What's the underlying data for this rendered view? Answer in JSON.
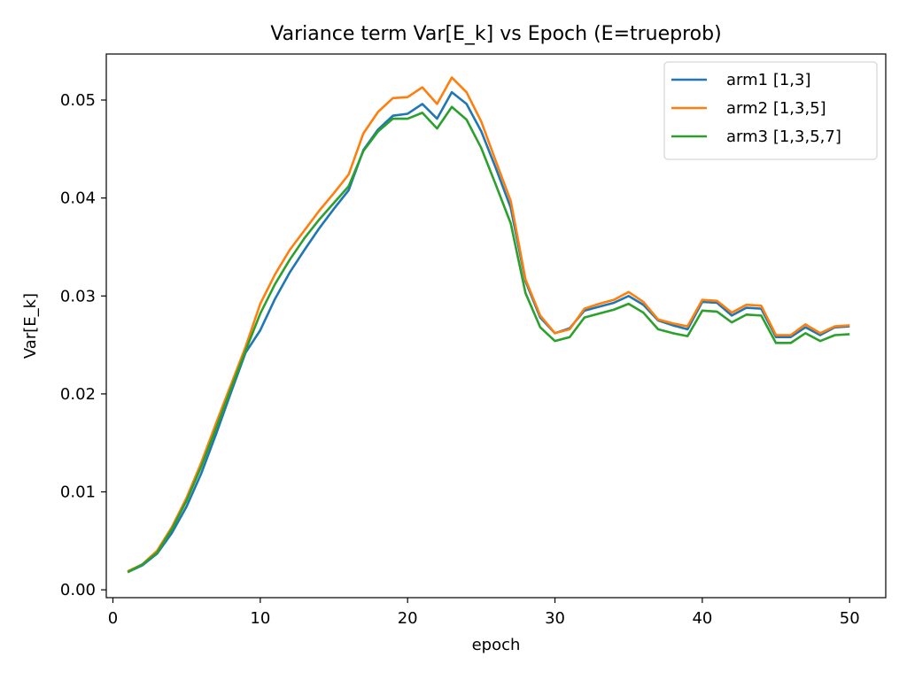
{
  "chart_data": {
    "type": "line",
    "title": "Variance term Var[E_k] vs Epoch  (E=trueprob)",
    "xlabel": "epoch",
    "ylabel": "Var[E_k]",
    "xlim": [
      -0.45,
      52.45
    ],
    "ylim": [
      -0.0008,
      0.0547
    ],
    "xticks": [
      "0",
      "10",
      "20",
      "30",
      "40",
      "50"
    ],
    "yticks": [
      "0.00",
      "0.01",
      "0.02",
      "0.03",
      "0.04",
      "0.05"
    ],
    "grid": false,
    "legend_position": "top-right",
    "x": [
      1,
      2,
      3,
      4,
      5,
      6,
      7,
      8,
      9,
      10,
      11,
      12,
      13,
      14,
      15,
      16,
      17,
      18,
      19,
      20,
      21,
      22,
      23,
      24,
      25,
      26,
      27,
      28,
      29,
      30,
      31,
      32,
      33,
      34,
      35,
      36,
      37,
      38,
      39,
      40,
      41,
      42,
      43,
      44,
      45,
      46,
      47,
      48,
      49,
      50
    ],
    "series": [
      {
        "name": "arm1 [1,3]",
        "color": "#1f77b4",
        "values": [
          0.0018,
          0.0025,
          0.0037,
          0.0058,
          0.0085,
          0.0119,
          0.0159,
          0.0201,
          0.0242,
          0.0265,
          0.0297,
          0.0324,
          0.0347,
          0.0369,
          0.0389,
          0.0408,
          0.0449,
          0.047,
          0.0484,
          0.0486,
          0.0496,
          0.0481,
          0.0508,
          0.0496,
          0.0468,
          0.043,
          0.039,
          0.0315,
          0.0278,
          0.0262,
          0.0267,
          0.0285,
          0.0289,
          0.0293,
          0.03,
          0.0291,
          0.0275,
          0.027,
          0.0266,
          0.0294,
          0.0293,
          0.028,
          0.0288,
          0.0287,
          0.0258,
          0.0258,
          0.0268,
          0.026,
          0.0268,
          0.0269
        ]
      },
      {
        "name": "arm2 [1,3,5]",
        "color": "#ff7f0e",
        "values": [
          0.0019,
          0.0026,
          0.004,
          0.0064,
          0.0094,
          0.013,
          0.017,
          0.0209,
          0.0248,
          0.0292,
          0.0322,
          0.0347,
          0.0367,
          0.0387,
          0.0405,
          0.0424,
          0.0466,
          0.0488,
          0.0502,
          0.0503,
          0.0513,
          0.0496,
          0.0523,
          0.0508,
          0.0478,
          0.0437,
          0.0397,
          0.0317,
          0.028,
          0.0262,
          0.0266,
          0.0287,
          0.0292,
          0.0296,
          0.0304,
          0.0294,
          0.0276,
          0.0272,
          0.0269,
          0.0296,
          0.0295,
          0.0283,
          0.0291,
          0.029,
          0.026,
          0.026,
          0.0271,
          0.0262,
          0.0269,
          0.027
        ]
      },
      {
        "name": "arm3 [1,3,5,7]",
        "color": "#2ca02c",
        "values": [
          0.0018,
          0.0026,
          0.0038,
          0.0062,
          0.0091,
          0.0126,
          0.0165,
          0.0205,
          0.0244,
          0.0282,
          0.0312,
          0.0337,
          0.0359,
          0.0378,
          0.0395,
          0.0412,
          0.0448,
          0.0468,
          0.0481,
          0.0481,
          0.0487,
          0.0471,
          0.0493,
          0.048,
          0.0451,
          0.0413,
          0.0374,
          0.0303,
          0.0268,
          0.0254,
          0.0258,
          0.0278,
          0.0282,
          0.0286,
          0.0292,
          0.0283,
          0.0266,
          0.0262,
          0.0259,
          0.0285,
          0.0284,
          0.0273,
          0.0281,
          0.028,
          0.0252,
          0.0252,
          0.0262,
          0.0254,
          0.026,
          0.0261
        ]
      }
    ]
  }
}
